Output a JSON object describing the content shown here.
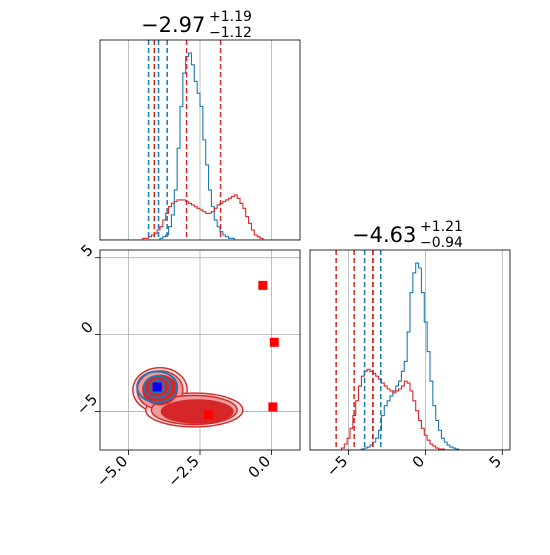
{
  "chart_data": [
    {
      "panel": "marginal-1",
      "type": "histogram",
      "title": {
        "main": "−2.97",
        "sup": "+1.19",
        "sub": "−1.12"
      },
      "xlim": [
        -6.0,
        1.0
      ],
      "grid": true,
      "show_tick_labels": false,
      "series": [
        {
          "color": "#1f77b4",
          "counts": [
            0,
            0,
            0,
            0,
            0,
            0,
            0,
            0,
            0,
            0,
            0,
            0,
            0,
            0,
            0,
            0,
            0,
            0,
            0,
            0,
            0,
            1,
            2,
            3,
            8,
            15,
            30,
            55,
            80,
            100,
            110,
            112,
            105,
            95,
            88,
            80,
            60,
            45,
            30,
            20,
            12,
            8,
            5,
            3,
            2,
            1,
            1,
            0,
            0,
            0,
            0,
            0,
            0,
            0,
            0,
            0,
            0,
            0,
            0,
            0,
            0,
            0,
            0,
            0,
            0,
            0,
            0,
            0,
            0,
            0
          ]
        },
        {
          "color": "#d62728",
          "counts": [
            0,
            0,
            0,
            0,
            0,
            0,
            0,
            0,
            0,
            0,
            0,
            0,
            0,
            0,
            0,
            1,
            1,
            2,
            3,
            4,
            6,
            8,
            12,
            16,
            20,
            22,
            23,
            24,
            24,
            24,
            23,
            22,
            21,
            20,
            19,
            18,
            17,
            16,
            16,
            17,
            19,
            21,
            22,
            23,
            24,
            25,
            26,
            27,
            25,
            22,
            19,
            14,
            10,
            6,
            3,
            2,
            1,
            0,
            0,
            0,
            0,
            0,
            0,
            0,
            0,
            0,
            0,
            0,
            0,
            0
          ]
        }
      ],
      "vlines": [
        {
          "x": -4.3,
          "color": "#1f77b4"
        },
        {
          "x": -3.95,
          "color": "#1f77b4"
        },
        {
          "x": -3.65,
          "color": "#1f77b4"
        },
        {
          "x": -4.1,
          "color": "#d62728"
        },
        {
          "x": -2.97,
          "color": "#d62728"
        },
        {
          "x": -1.78,
          "color": "#d62728"
        }
      ]
    },
    {
      "panel": "joint",
      "type": "contour",
      "xlim": [
        -6.0,
        1.0
      ],
      "ylim": [
        -7.5,
        5.5
      ],
      "xticks": [
        "−5.0",
        "−2.5",
        "0.0"
      ],
      "xtick_values": [
        -5.0,
        -2.5,
        0.0
      ],
      "yticks": [
        "−5",
        "0",
        "5"
      ],
      "ytick_values": [
        -5,
        0,
        5
      ],
      "grid": true,
      "red_contours": [
        {
          "cx": -3.9,
          "cy": -3.6,
          "rx": 0.95,
          "ry": 1.45,
          "fill": "#f9dede"
        },
        {
          "cx": -2.7,
          "cy": -4.9,
          "rx": 1.7,
          "ry": 1.1,
          "fill": "#f9dede"
        },
        {
          "cx": -3.9,
          "cy": -3.6,
          "rx": 0.8,
          "ry": 1.25,
          "fill": "#f29b9b"
        },
        {
          "cx": -2.7,
          "cy": -4.9,
          "rx": 1.5,
          "ry": 0.95,
          "fill": "#f29b9b"
        },
        {
          "cx": -3.9,
          "cy": -3.6,
          "rx": 0.6,
          "ry": 0.95,
          "fill": "#d62728"
        },
        {
          "cx": -2.6,
          "cy": -5.0,
          "rx": 1.25,
          "ry": 0.75,
          "fill": "#d62728"
        }
      ],
      "blue_contours": [
        {
          "cx": -4.0,
          "cy": -3.4,
          "rx": 0.7,
          "ry": 1.0
        },
        {
          "cx": -4.0,
          "cy": -3.4,
          "rx": 0.45,
          "ry": 0.7
        },
        {
          "cx": -4.0,
          "cy": -3.4,
          "rx": 0.25,
          "ry": 0.4
        }
      ],
      "markers": [
        {
          "x": -4.0,
          "y": -3.4,
          "color": "#0000ff"
        },
        {
          "x": -2.2,
          "y": -5.2,
          "color": "#ff0000"
        },
        {
          "x": -0.3,
          "y": 3.2,
          "color": "#ff0000"
        },
        {
          "x": 0.1,
          "y": -0.5,
          "color": "#ff0000"
        },
        {
          "x": 0.05,
          "y": -4.7,
          "color": "#ff0000"
        }
      ]
    },
    {
      "panel": "marginal-2",
      "type": "histogram",
      "title": {
        "main": "−4.63",
        "sup": "+1.21",
        "sub": "−0.94"
      },
      "xlim": [
        -7.5,
        5.5
      ],
      "xticks": [
        "−5",
        "0",
        "5"
      ],
      "xtick_values": [
        -5,
        0,
        5
      ],
      "grid": true,
      "series": [
        {
          "color": "#1f77b4",
          "counts": [
            0,
            0,
            0,
            0,
            0,
            0,
            0,
            0,
            0,
            0,
            0,
            0,
            0,
            0,
            0,
            0,
            0,
            0,
            1,
            2,
            3,
            5,
            8,
            12,
            20,
            35,
            45,
            50,
            55,
            60,
            65,
            70,
            80,
            90,
            120,
            160,
            180,
            190,
            185,
            160,
            130,
            100,
            70,
            45,
            30,
            20,
            12,
            8,
            5,
            3,
            2,
            1,
            0,
            0,
            0,
            0,
            0,
            0,
            0,
            0,
            0,
            0,
            0,
            0,
            0,
            0,
            0,
            0,
            0,
            0
          ]
        },
        {
          "color": "#d62728",
          "counts": [
            0,
            0,
            0,
            0,
            0,
            0,
            0,
            0,
            0,
            0,
            0,
            2,
            6,
            12,
            22,
            35,
            50,
            65,
            75,
            80,
            82,
            80,
            78,
            75,
            72,
            68,
            65,
            62,
            60,
            58,
            60,
            62,
            65,
            70,
            68,
            60,
            50,
            40,
            30,
            22,
            15,
            10,
            6,
            4,
            2,
            1,
            1,
            0,
            0,
            0,
            0,
            0,
            0,
            0,
            0,
            0,
            0,
            0,
            0,
            0,
            0,
            0,
            0,
            0,
            0,
            0,
            0,
            0,
            0,
            0
          ]
        }
      ],
      "vlines": [
        {
          "x": -3.95,
          "color": "#1f77b4"
        },
        {
          "x": -3.4,
          "color": "#1f77b4"
        },
        {
          "x": -2.9,
          "color": "#1f77b4"
        },
        {
          "x": -5.8,
          "color": "#d62728"
        },
        {
          "x": -4.63,
          "color": "#d62728"
        },
        {
          "x": -3.42,
          "color": "#d62728"
        }
      ]
    }
  ]
}
